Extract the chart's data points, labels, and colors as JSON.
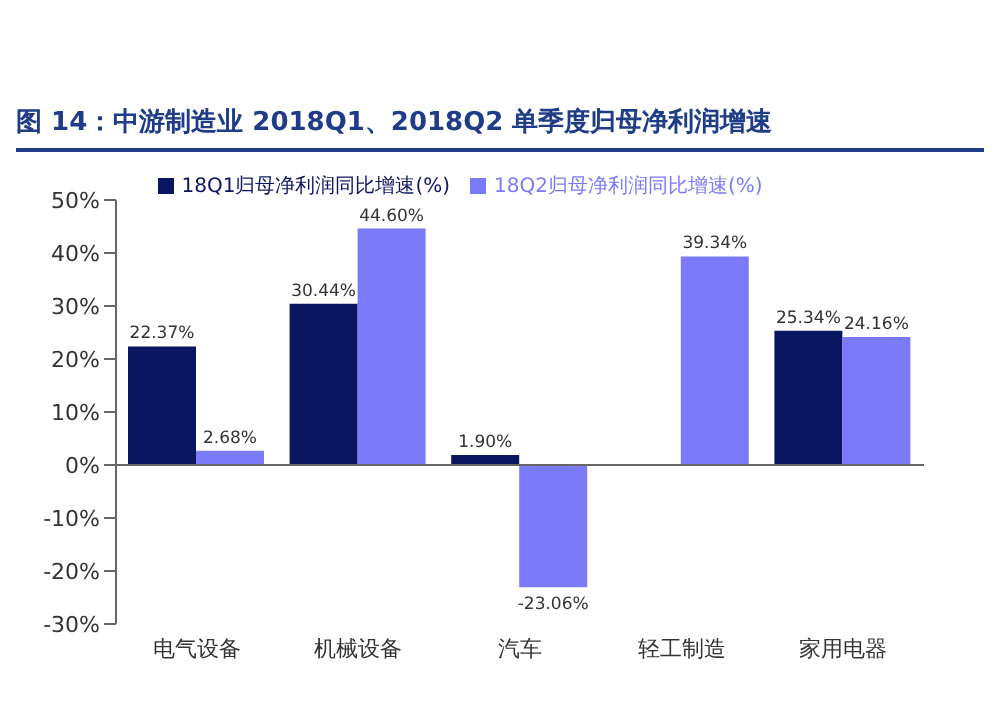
{
  "chart_data": {
    "type": "bar",
    "title": "图 14：中游制造业 2018Q1、2018Q2 单季度归母净利润增速",
    "categories": [
      "电气设备",
      "机械设备",
      "汽车",
      "轻工制造",
      "家用电器"
    ],
    "series": [
      {
        "name": "18Q1归母净利润同比增速(%)",
        "color": "#0b1660",
        "values": [
          22.37,
          30.44,
          1.9,
          null,
          25.34
        ],
        "value_labels": [
          "22.37%",
          "30.44%",
          "1.90%",
          null,
          "25.34%"
        ]
      },
      {
        "name": "18Q2归母净利润同比增速(%)",
        "color": "#7b7bfa",
        "values": [
          2.68,
          44.6,
          -23.06,
          39.34,
          24.16
        ],
        "value_labels": [
          "2.68%",
          "44.60%",
          "-23.06%",
          "39.34%",
          "24.16%"
        ]
      }
    ],
    "ylim": [
      -30,
      50
    ],
    "yticks": [
      {
        "value": -30,
        "label": "-30%"
      },
      {
        "value": -20,
        "label": "-20%"
      },
      {
        "value": -10,
        "label": "-10%"
      },
      {
        "value": 0,
        "label": "0%"
      },
      {
        "value": 10,
        "label": "10%"
      },
      {
        "value": 20,
        "label": "20%"
      },
      {
        "value": 30,
        "label": "30%"
      },
      {
        "value": 40,
        "label": "40%"
      },
      {
        "value": 50,
        "label": "50%"
      }
    ],
    "legend": "top"
  }
}
